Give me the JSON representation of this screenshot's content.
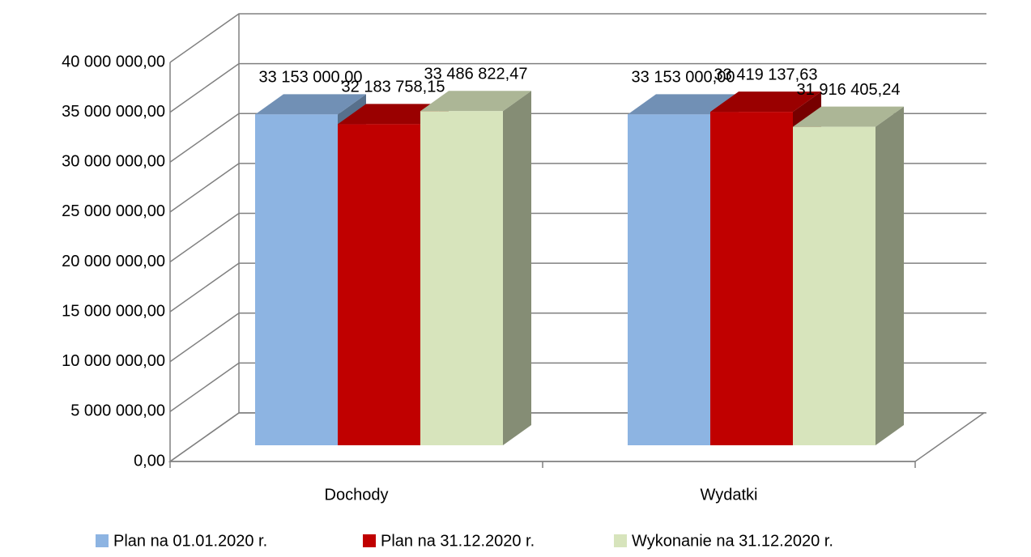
{
  "chart_data": {
    "type": "bar3d",
    "categories": [
      "Dochody",
      "Wydatki"
    ],
    "series": [
      {
        "name": "Plan na 01.01.2020 r.",
        "color": "#8db4e2",
        "values": [
          33153000,
          33153000
        ],
        "value_labels": [
          "33 153 000,00",
          "33 153 000,00"
        ]
      },
      {
        "name": "Plan na 31.12.2020 r.",
        "color": "#c00000",
        "values": [
          32183758.15,
          33419137.63
        ],
        "value_labels": [
          "32 183 758,15",
          "33 419 137,63"
        ]
      },
      {
        "name": "Wykonanie na 31.12.2020 r.",
        "color": "#d7e4bc",
        "values": [
          33486822.47,
          31916405.24
        ],
        "value_labels": [
          "33 486 822,47",
          "31 916 405,24"
        ]
      }
    ],
    "ylim": [
      0,
      40000000
    ],
    "yticks": [
      {
        "value": 0,
        "label": "0,00"
      },
      {
        "value": 5000000,
        "label": "5 000 000,00"
      },
      {
        "value": 10000000,
        "label": "10 000 000,00"
      },
      {
        "value": 15000000,
        "label": "15 000 000,00"
      },
      {
        "value": 20000000,
        "label": "20 000 000,00"
      },
      {
        "value": 25000000,
        "label": "25 000 000,00"
      },
      {
        "value": 30000000,
        "label": "30 000 000,00"
      },
      {
        "value": 35000000,
        "label": "35 000 000,00"
      },
      {
        "value": 40000000,
        "label": "40 000 000,00"
      }
    ],
    "grid": true,
    "legend": "bottom"
  }
}
